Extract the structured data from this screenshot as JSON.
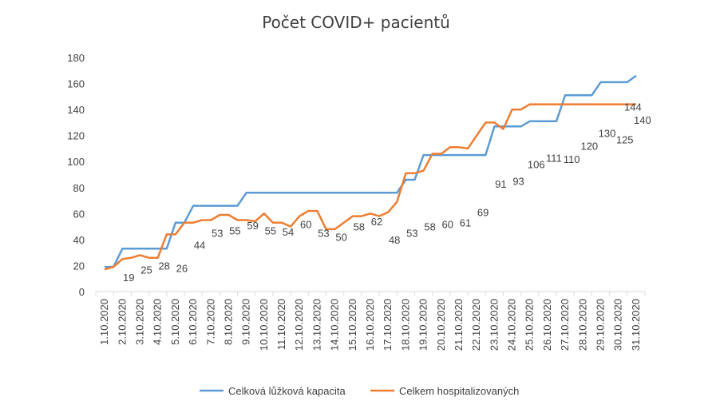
{
  "chart_data": {
    "type": "line",
    "title": "Počet COVID+ pacientů",
    "xlabel": "",
    "ylabel": "",
    "ylim": [
      0,
      180
    ],
    "yticks": [
      0,
      20,
      40,
      60,
      80,
      100,
      120,
      140,
      160,
      180
    ],
    "grid": false,
    "legend_position": "bottom",
    "categories": [
      "1.10.2020",
      "2.10.2020",
      "3.10.2020",
      "4.10.2020",
      "5.10.2020",
      "6.10.2020",
      "7.10.2020",
      "8.10.2020",
      "9.10.2020",
      "10.10.2020",
      "11.10.2020",
      "12.10.2020",
      "13.10.2020",
      "14.10.2020",
      "15.10.2020",
      "16.10.2020",
      "17.10.2020",
      "18.10.2020",
      "19.10.2020",
      "20.10.2020",
      "21.10.2020",
      "22.10.2020",
      "23.10.2020",
      "24.10.2020",
      "25.10.2020",
      "26.10.2020",
      "27.10.2020",
      "28.10.2020",
      "29.10.2020",
      "30.10.2020",
      "31.10.2020"
    ],
    "series": [
      {
        "name": "Celková lůžková kapacita",
        "color": "#5b9bd5",
        "x": [
          1,
          1.5,
          2,
          2.5,
          3,
          3.5,
          4,
          4.5,
          5,
          5.5,
          6,
          6.5,
          7,
          7.5,
          8,
          8.5,
          9,
          9.5,
          10,
          10.5,
          11,
          11.5,
          12,
          12.5,
          13,
          13.5,
          14,
          14.5,
          15,
          15.5,
          16,
          16.5,
          17,
          17.5,
          18,
          18.5,
          19,
          19.5,
          20,
          20.5,
          21,
          21.5,
          22,
          22.5,
          23,
          23.5,
          24,
          24.5,
          25,
          25.5,
          26,
          26.5,
          27,
          27.5,
          28,
          28.5,
          29,
          29.5,
          30,
          30.5,
          31
        ],
        "values": [
          19,
          19,
          33,
          33,
          33,
          33,
          33,
          33,
          53,
          53,
          66,
          66,
          66,
          66,
          66,
          66,
          76,
          76,
          76,
          76,
          76,
          76,
          76,
          76,
          76,
          76,
          76,
          76,
          76,
          76,
          76,
          76,
          76,
          76,
          86,
          86,
          105,
          105,
          105,
          105,
          105,
          105,
          105,
          105,
          127,
          127,
          127,
          127,
          131,
          131,
          131,
          131,
          151,
          151,
          151,
          151,
          161,
          161,
          161,
          161,
          166
        ]
      },
      {
        "name": "Celkem hospitalizovaných",
        "color": "#ed7d31",
        "x": [
          1,
          1.5,
          2,
          2.5,
          3,
          3.5,
          4,
          4.5,
          5,
          5.5,
          6,
          6.5,
          7,
          7.5,
          8,
          8.5,
          9,
          9.5,
          10,
          10.5,
          11,
          11.5,
          12,
          12.5,
          13,
          13.5,
          14,
          14.5,
          15,
          15.5,
          16,
          16.5,
          17,
          17.5,
          18,
          18.5,
          19,
          19.5,
          20,
          20.5,
          21,
          21.5,
          22,
          22.5,
          23,
          23.5,
          24,
          24.5,
          25,
          25.5,
          26,
          26.5,
          27,
          27.5,
          28,
          28.5,
          29,
          29.5,
          30,
          30.5,
          31
        ],
        "values": [
          17,
          19,
          25,
          26,
          28,
          26,
          26,
          44,
          44,
          53,
          53,
          55,
          55,
          59,
          59,
          55,
          55,
          54,
          60,
          53,
          53,
          50,
          58,
          62,
          62,
          48,
          48,
          53,
          58,
          58,
          60,
          58,
          61,
          69,
          91,
          91,
          93,
          106,
          106,
          111,
          111,
          110,
          120,
          130,
          130,
          125,
          140,
          140,
          144,
          144,
          144,
          144,
          144,
          144,
          144,
          144,
          144,
          144,
          144,
          144,
          144
        ]
      }
    ],
    "data_labels": [
      {
        "x": 2,
        "y": 19,
        "text": "19"
      },
      {
        "x": 3,
        "y": 25,
        "text": "25"
      },
      {
        "x": 4,
        "y": 28,
        "text": "28"
      },
      {
        "x": 5,
        "y": 26,
        "text": "26"
      },
      {
        "x": 6,
        "y": 44,
        "text": "44"
      },
      {
        "x": 7,
        "y": 53,
        "text": "53"
      },
      {
        "x": 8,
        "y": 55,
        "text": "55"
      },
      {
        "x": 9,
        "y": 59,
        "text": "59"
      },
      {
        "x": 10,
        "y": 55,
        "text": "55"
      },
      {
        "x": 11,
        "y": 54,
        "text": "54"
      },
      {
        "x": 12,
        "y": 60,
        "text": "60"
      },
      {
        "x": 13,
        "y": 53,
        "text": "53"
      },
      {
        "x": 14,
        "y": 50,
        "text": "50"
      },
      {
        "x": 15,
        "y": 58,
        "text": "58"
      },
      {
        "x": 16,
        "y": 62,
        "text": "62"
      },
      {
        "x": 17,
        "y": 48,
        "text": "48"
      },
      {
        "x": 18,
        "y": 53,
        "text": "53"
      },
      {
        "x": 19,
        "y": 58,
        "text": "58"
      },
      {
        "x": 20,
        "y": 60,
        "text": "60"
      },
      {
        "x": 21,
        "y": 61,
        "text": "61"
      },
      {
        "x": 22,
        "y": 69,
        "text": "69"
      },
      {
        "x": 23,
        "y": 91,
        "text": "91"
      },
      {
        "x": 24,
        "y": 93,
        "text": "93"
      },
      {
        "x": 25,
        "y": 106,
        "text": "106"
      },
      {
        "x": 26,
        "y": 111,
        "text": "111"
      },
      {
        "x": 27,
        "y": 110,
        "text": "110"
      },
      {
        "x": 28,
        "y": 120,
        "text": "120"
      },
      {
        "x": 29,
        "y": 130,
        "text": "130"
      },
      {
        "x": 30,
        "y": 125,
        "text": "125"
      },
      {
        "x": 31,
        "y": 140,
        "text": "140"
      },
      {
        "x": 31,
        "y": 144,
        "text": "144"
      }
    ]
  }
}
